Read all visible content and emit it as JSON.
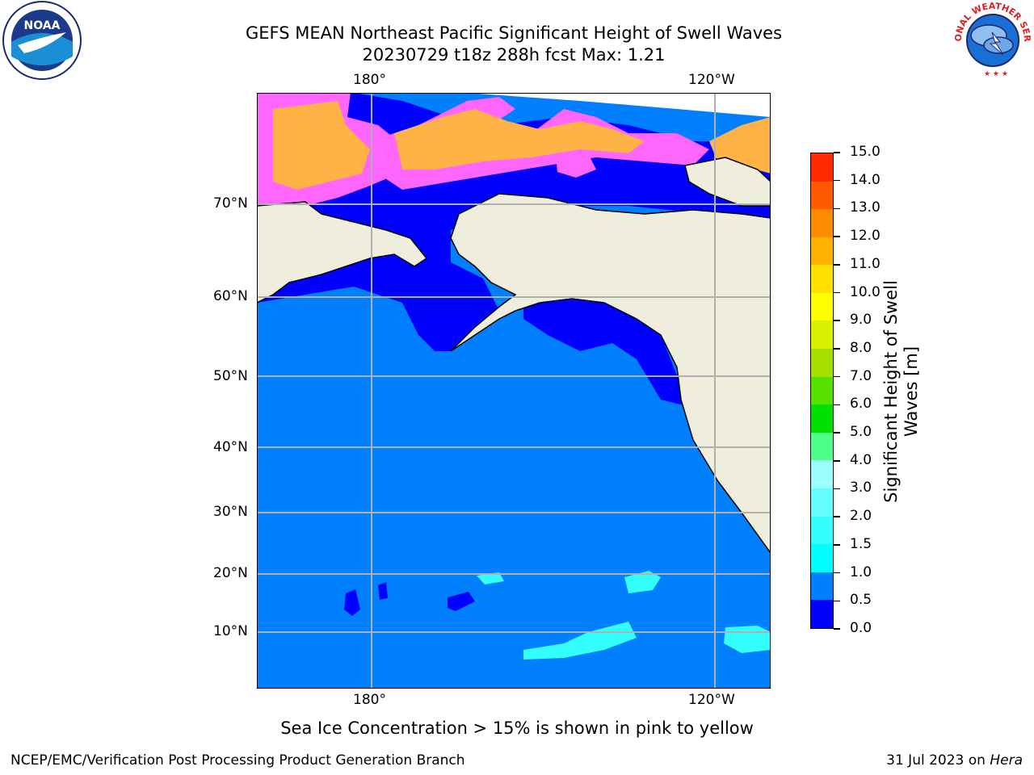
{
  "title": {
    "line1": "GEFS MEAN Northeast Pacific Significant Height of Swell Waves",
    "line2": "20230729 t18z 288h fcst   Max: 1.21"
  },
  "map": {
    "lon_labels_top": [
      "180°",
      "120°W"
    ],
    "lon_labels_bottom": [
      "180°",
      "120°W"
    ],
    "lat_labels": [
      "70°N",
      "60°N",
      "50°N",
      "40°N",
      "30°N",
      "20°N",
      "10°N"
    ],
    "colors": {
      "ocean": "#0080ff",
      "swell_low": "#0000ff",
      "land": "#efeedd",
      "ice_pink": "#ff66ff",
      "ice_orange": "#ffb347",
      "swell_cyan": "#33ffff",
      "grid": "#b0b0b0"
    }
  },
  "colorbar": {
    "label_line1": "Significant Height of Swell",
    "label_line2": "Waves [m]",
    "ticks": [
      "0.0",
      "0.5",
      "1.0",
      "1.5",
      "2.0",
      "3.0",
      "4.0",
      "5.0",
      "6.0",
      "7.0",
      "8.0",
      "9.0",
      "10.0",
      "11.0",
      "12.0",
      "13.0",
      "14.0",
      "15.0"
    ],
    "colors": [
      "#0000ff",
      "#0080ff",
      "#00ffff",
      "#33ffff",
      "#66ffff",
      "#99ffff",
      "#4dff88",
      "#00e000",
      "#55e000",
      "#a5e000",
      "#d9f000",
      "#ffff00",
      "#ffe000",
      "#ffb300",
      "#ff8c00",
      "#ff5a00",
      "#ff2a00",
      "#ff0000"
    ]
  },
  "note": "Sea Ice Concentration > 15% is shown in pink to yellow",
  "footer": {
    "left": "NCEP/EMC/Verification Post Processing Product Generation Branch",
    "date": "31 Jul 2023 on",
    "host": "Hera"
  },
  "logos": {
    "left": "NOAA",
    "right": "NATIONAL WEATHER SERVICE"
  }
}
